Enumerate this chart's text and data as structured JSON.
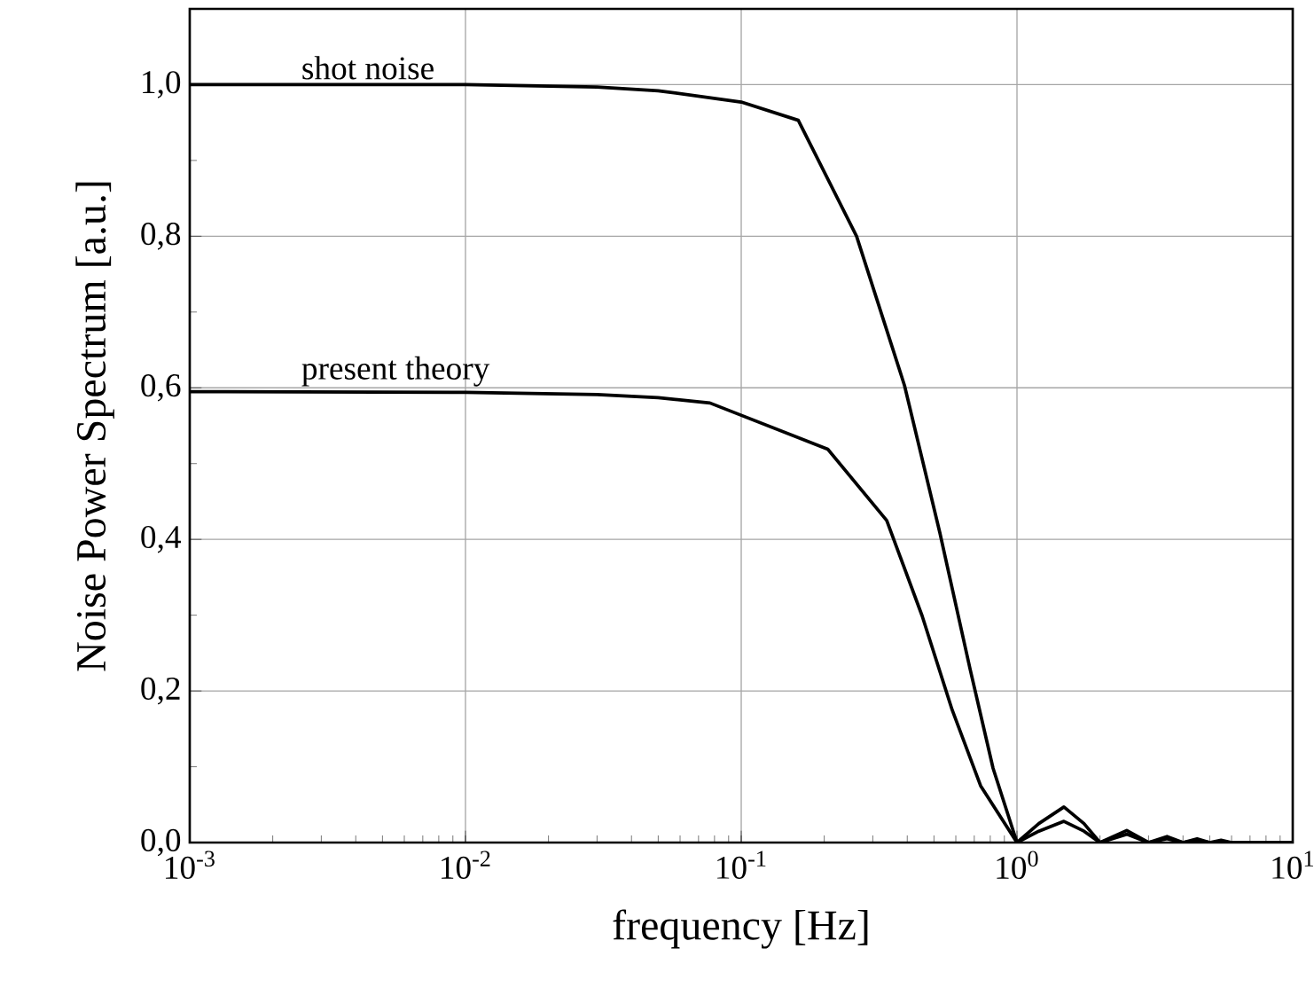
{
  "chart_data": {
    "type": "line",
    "xlabel": "frequency [Hz]",
    "ylabel": "Noise Power Spectrum [a.u.]",
    "log": "x",
    "grid": true,
    "legend": false,
    "marker": "none",
    "line_style": "solid",
    "xlim": [
      0.001,
      10
    ],
    "ylim": [
      0,
      1.1
    ],
    "xticks": [
      {
        "value": 0.001,
        "label": "10$^{-3}$"
      },
      {
        "value": 0.01,
        "label": "10$^{-2}$"
      },
      {
        "value": 0.1,
        "label": "10$^{-1}$"
      },
      {
        "value": 1,
        "label": "10$^{0}$"
      },
      {
        "value": 10,
        "label": "10$^{1}$"
      }
    ],
    "yticks": [
      {
        "value": 0,
        "label": "0,0"
      },
      {
        "value": 0.2,
        "label": "0,2"
      },
      {
        "value": 0.4,
        "label": "0,4"
      },
      {
        "value": 0.6,
        "label": "0,6"
      },
      {
        "value": 0.8,
        "label": "0,8"
      },
      {
        "value": 1.0,
        "label": "1,0"
      }
    ],
    "series": [
      {
        "name": "shot noise",
        "color": "#000000",
        "x": [
          0.001,
          0.01,
          0.03,
          0.05,
          0.1,
          0.161,
          0.262,
          0.391,
          0.525,
          0.676,
          0.819,
          1,
          1.2,
          1.48,
          1.75,
          2,
          2.5,
          3,
          3.5,
          4,
          4.5,
          5,
          5.5,
          6,
          7,
          8,
          9,
          10
        ],
        "values": [
          1.0,
          1.0,
          0.997,
          0.992,
          0.977,
          0.953,
          0.8,
          0.603,
          0.409,
          0.229,
          0.098,
          0.0,
          0.025,
          0.047,
          0.025,
          0.0,
          0.016,
          0.0,
          0.008,
          0.0,
          0.005,
          0.0,
          0.003,
          0.0,
          0.0,
          0.0,
          0.0,
          0.0
        ]
      },
      {
        "name": "present theory",
        "color": "#000000",
        "x": [
          0.001,
          0.01,
          0.03,
          0.05,
          0.077,
          0.206,
          0.337,
          0.453,
          0.582,
          0.738,
          1,
          1.2,
          1.48,
          1.75,
          2,
          2.5,
          3,
          3.5,
          4,
          4.5,
          5,
          6,
          7,
          8,
          9,
          10
        ],
        "values": [
          0.595,
          0.594,
          0.591,
          0.587,
          0.58,
          0.519,
          0.425,
          0.299,
          0.175,
          0.075,
          0.0,
          0.015,
          0.028,
          0.015,
          0.0,
          0.011,
          0.0,
          0.005,
          0.0,
          0.003,
          0.0,
          0.0,
          0.0,
          0.0,
          0.0,
          0.0
        ]
      }
    ]
  }
}
